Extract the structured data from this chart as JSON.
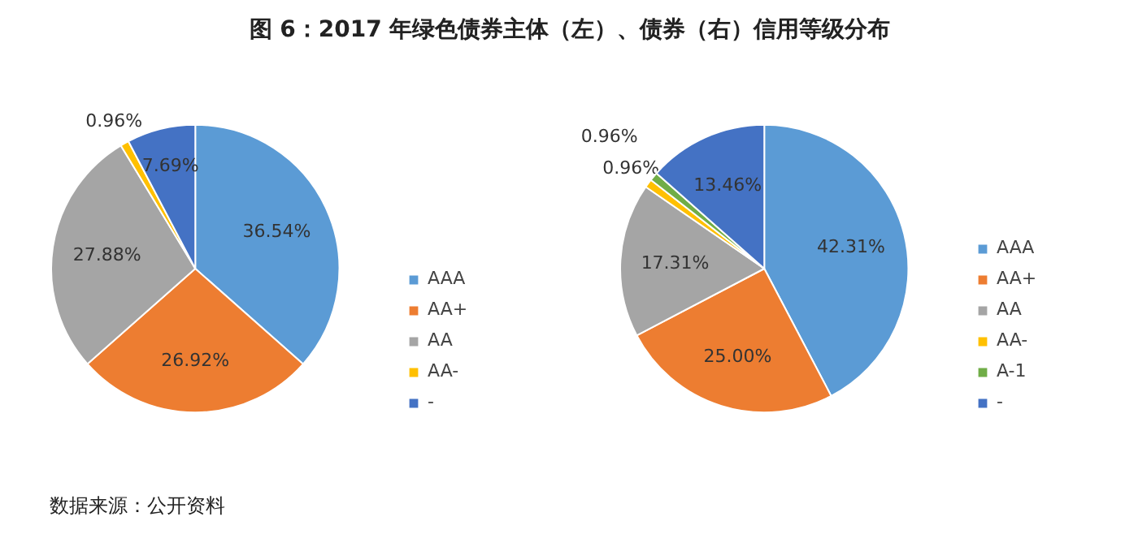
{
  "chart_data": [
    {
      "type": "pie",
      "title": "图 6：2017 年绿色债券主体（左）、债券（右）信用等级分布",
      "annotations": [
        "数据来源：公开资料"
      ],
      "categories": [
        "AAA",
        "AA+",
        "AA",
        "AA-",
        "-"
      ],
      "values": [
        36.54,
        26.92,
        27.88,
        0.96,
        7.69
      ],
      "value_labels": [
        "36.54%",
        "26.92%",
        "27.88%",
        "0.96%",
        "7.69%"
      ],
      "colors": [
        "#5b9bd5",
        "#ed7d31",
        "#a5a5a5",
        "#ffc000",
        "#4472c4"
      ],
      "legend": "right"
    },
    {
      "type": "pie",
      "categories": [
        "AAA",
        "AA+",
        "AA",
        "AA-",
        "A-1",
        "-"
      ],
      "values": [
        42.31,
        25.0,
        17.31,
        0.96,
        0.96,
        13.46
      ],
      "value_labels": [
        "42.31%",
        "25.00%",
        "17.31%",
        "0.96%",
        "0.96%",
        "13.46%"
      ],
      "colors": [
        "#5b9bd5",
        "#ed7d31",
        "#a5a5a5",
        "#ffc000",
        "#70ad47",
        "#4472c4"
      ],
      "legend": "right"
    }
  ]
}
